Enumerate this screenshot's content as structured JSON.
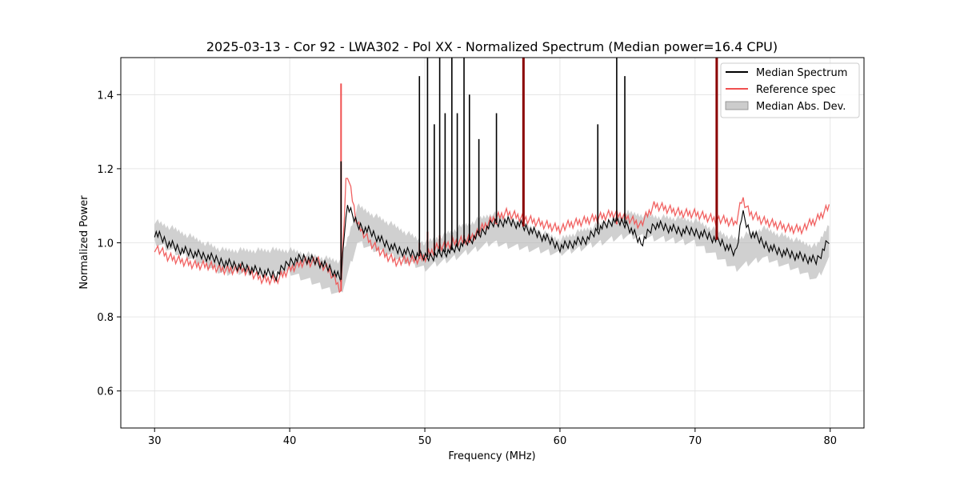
{
  "chart_data": {
    "type": "line",
    "title": "2025-03-13 - Cor 92 - LWA302 - Pol XX - Normalized Spectrum (Median power=16.4 CPU)",
    "xlabel": "Frequency (MHz)",
    "ylabel": "Normalized Power",
    "xlim": [
      27.5,
      82.5
    ],
    "ylim": [
      0.5,
      1.5
    ],
    "xticks": [
      30,
      40,
      50,
      60,
      70,
      80
    ],
    "yticks": [
      0.6,
      0.8,
      1.0,
      1.2,
      1.4
    ],
    "xtick_labels": [
      "30",
      "40",
      "50",
      "60",
      "70",
      "80"
    ],
    "ytick_labels": [
      "0.6",
      "0.8",
      "1.0",
      "1.2",
      "1.4"
    ],
    "grid": true,
    "legend_position": "top-right",
    "legend": [
      "Median Spectrum",
      "Reference spec",
      "Median Abs. Dev."
    ],
    "colors": {
      "median": "#000000",
      "reference": "#f05050",
      "mad": "#b0b0b0",
      "overlap": "#8b0000"
    },
    "series": [
      {
        "name": "Median Spectrum",
        "x": [
          30,
          31,
          32,
          33,
          34,
          35,
          36,
          37,
          38,
          39,
          40,
          41,
          42,
          43,
          43.8,
          44.2,
          45,
          46,
          47,
          48,
          49,
          50,
          51,
          52,
          53,
          54,
          55,
          56,
          57,
          58,
          59,
          60,
          61,
          62,
          63,
          64,
          65,
          66,
          67,
          68,
          69,
          70,
          71,
          72,
          73,
          73.5,
          74,
          75,
          76,
          77,
          78,
          79,
          80
        ],
        "y": [
          1.03,
          1.0,
          0.98,
          0.97,
          0.96,
          0.95,
          0.94,
          0.93,
          0.92,
          0.91,
          0.95,
          0.96,
          0.95,
          0.93,
          0.9,
          1.1,
          1.05,
          1.03,
          1.0,
          0.98,
          0.97,
          0.96,
          0.97,
          0.98,
          1.0,
          1.02,
          1.05,
          1.06,
          1.05,
          1.03,
          1.01,
          0.99,
          1.0,
          1.01,
          1.04,
          1.06,
          1.05,
          1.0,
          1.05,
          1.04,
          1.03,
          1.03,
          1.02,
          1.0,
          0.97,
          1.08,
          1.03,
          1.0,
          0.98,
          0.97,
          0.96,
          0.95,
          1.01
        ]
      },
      {
        "name": "Reference spec",
        "x": [
          30,
          31,
          32,
          33,
          34,
          35,
          36,
          37,
          38,
          39,
          40,
          41,
          42,
          43,
          43.8,
          44.2,
          45,
          46,
          47,
          48,
          49,
          50,
          51,
          52,
          53,
          54,
          55,
          56,
          57,
          58,
          59,
          60,
          61,
          62,
          63,
          64,
          65,
          66,
          67,
          68,
          69,
          70,
          71,
          72,
          73,
          73.5,
          74,
          75,
          76,
          77,
          78,
          79,
          80
        ],
        "y": [
          0.99,
          0.96,
          0.95,
          0.94,
          0.94,
          0.93,
          0.93,
          0.92,
          0.9,
          0.9,
          0.93,
          0.95,
          0.95,
          0.92,
          0.87,
          1.2,
          1.05,
          1.0,
          0.97,
          0.95,
          0.95,
          0.96,
          0.99,
          1.0,
          1.01,
          1.03,
          1.06,
          1.08,
          1.07,
          1.06,
          1.05,
          1.04,
          1.05,
          1.06,
          1.07,
          1.08,
          1.07,
          1.05,
          1.1,
          1.09,
          1.08,
          1.08,
          1.07,
          1.06,
          1.05,
          1.12,
          1.08,
          1.06,
          1.05,
          1.04,
          1.04,
          1.06,
          1.1
        ]
      },
      {
        "name": "Median Abs. Dev.",
        "x": [
          30,
          35,
          40,
          43.8,
          45,
          50,
          55,
          60,
          65,
          70,
          73,
          75,
          78,
          79,
          80
        ],
        "y_low": [
          1.0,
          0.92,
          0.92,
          0.86,
          1.0,
          0.93,
          1.0,
          0.97,
          1.02,
          1.0,
          0.93,
          0.96,
          0.92,
          0.9,
          0.96
        ],
        "y_high": [
          1.06,
          0.98,
          0.98,
          0.95,
          1.1,
          1.0,
          1.08,
          1.01,
          1.08,
          1.06,
          1.01,
          1.04,
          1.0,
          0.99,
          1.06
        ]
      }
    ],
    "spikes": [
      {
        "x": 43.8,
        "median": 1.22,
        "reference": 1.43
      },
      {
        "x": 49.6,
        "median": 1.45,
        "reference": 1.0
      },
      {
        "x": 50.2,
        "median": 1.5,
        "reference": 1.03
      },
      {
        "x": 50.7,
        "median": 1.32,
        "reference": 1.0
      },
      {
        "x": 51.1,
        "median": 1.5,
        "reference": 1.02
      },
      {
        "x": 51.5,
        "median": 1.35,
        "reference": 1.0
      },
      {
        "x": 52.0,
        "median": 1.5,
        "reference": 1.02
      },
      {
        "x": 52.4,
        "median": 1.35,
        "reference": 1.0
      },
      {
        "x": 52.9,
        "median": 1.5,
        "reference": 1.02
      },
      {
        "x": 53.3,
        "median": 1.4,
        "reference": 1.0
      },
      {
        "x": 54.0,
        "median": 1.28,
        "reference": 1.02
      },
      {
        "x": 55.3,
        "median": 1.35,
        "reference": 1.05
      },
      {
        "x": 57.3,
        "median": 1.5,
        "reference": 1.5
      },
      {
        "x": 62.8,
        "median": 1.32,
        "reference": 1.05
      },
      {
        "x": 64.2,
        "median": 1.5,
        "reference": 1.05
      },
      {
        "x": 64.8,
        "median": 1.45,
        "reference": 1.08
      },
      {
        "x": 71.6,
        "median": 1.5,
        "reference": 1.5
      }
    ]
  }
}
